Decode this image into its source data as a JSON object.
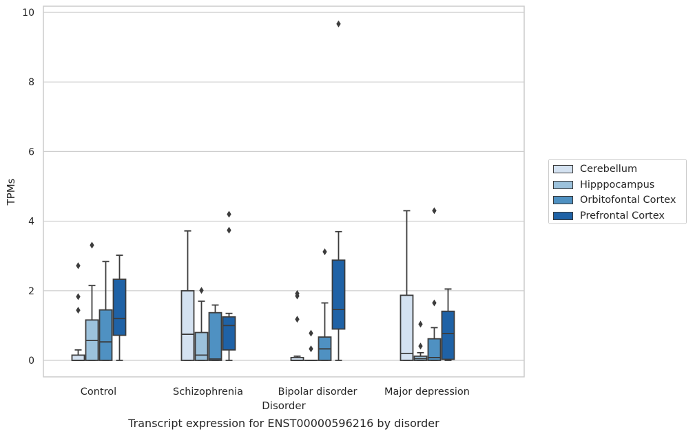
{
  "chart_data": {
    "type": "box",
    "xlabel": "Disorder",
    "ylabel": "TPMs",
    "caption": "Transcript expression for ENST00000596216 by disorder",
    "ylim": [
      -0.45,
      10.2
    ],
    "yticks": [
      0,
      2,
      4,
      6,
      8,
      10
    ],
    "categories": [
      "Control",
      "Schizophrenia",
      "Bipolar disorder",
      "Major depression"
    ],
    "grid": true,
    "legend_position": "right",
    "series": [
      {
        "name": "Cerebellum",
        "color": "#d4e2f1",
        "boxes": [
          {
            "whislo": 0,
            "q1": 0,
            "med": 0.0,
            "q3": 0.15,
            "whishi": 0.3,
            "fliers": [
              2.72,
              1.83,
              1.44
            ]
          },
          {
            "whislo": 0,
            "q1": 0,
            "med": 0.75,
            "q3": 2.0,
            "whishi": 3.72,
            "fliers": []
          },
          {
            "whislo": 0,
            "q1": 0,
            "med": 0.0,
            "q3": 0.08,
            "whishi": 0.12,
            "fliers": [
              1.92,
              1.85,
              1.18
            ]
          },
          {
            "whislo": 0,
            "q1": 0,
            "med": 0.2,
            "q3": 1.87,
            "whishi": 4.3,
            "fliers": []
          }
        ]
      },
      {
        "name": "Hipppocampus",
        "color": "#9cc2dc",
        "boxes": [
          {
            "whislo": 0,
            "q1": 0,
            "med": 0.57,
            "q3": 1.16,
            "whishi": 2.15,
            "fliers": [
              3.31
            ]
          },
          {
            "whislo": 0,
            "q1": 0,
            "med": 0.15,
            "q3": 0.8,
            "whishi": 1.7,
            "fliers": [
              2.01
            ]
          },
          {
            "whislo": 0,
            "q1": 0,
            "med": 0.0,
            "q3": 0.0,
            "whishi": 0.0,
            "fliers": [
              0.78,
              0.33
            ]
          },
          {
            "whislo": 0,
            "q1": 0,
            "med": 0.05,
            "q3": 0.12,
            "whishi": 0.22,
            "fliers": [
              1.04,
              0.41
            ]
          }
        ]
      },
      {
        "name": "Orbitofontal Cortex",
        "color": "#4f91c2",
        "boxes": [
          {
            "whislo": 0,
            "q1": 0,
            "med": 0.53,
            "q3": 1.45,
            "whishi": 2.84,
            "fliers": []
          },
          {
            "whislo": 0,
            "q1": 0,
            "med": 0.04,
            "q3": 1.37,
            "whishi": 1.59,
            "fliers": []
          },
          {
            "whislo": 0,
            "q1": 0,
            "med": 0.33,
            "q3": 0.67,
            "whishi": 1.65,
            "fliers": [
              3.12
            ]
          },
          {
            "whislo": 0,
            "q1": 0,
            "med": 0.08,
            "q3": 0.62,
            "whishi": 0.94,
            "fliers": [
              1.65,
              4.3
            ]
          }
        ]
      },
      {
        "name": "Prefrontal Cortex",
        "color": "#1f62a6",
        "boxes": [
          {
            "whislo": 0,
            "q1": 0.72,
            "med": 1.2,
            "q3": 2.33,
            "whishi": 3.02,
            "fliers": []
          },
          {
            "whislo": 0,
            "q1": 0.3,
            "med": 1.0,
            "q3": 1.25,
            "whishi": 1.35,
            "fliers": [
              4.2,
              3.74
            ]
          },
          {
            "whislo": 0,
            "q1": 0.9,
            "med": 1.46,
            "q3": 2.88,
            "whishi": 3.7,
            "fliers": [
              9.67
            ]
          },
          {
            "whislo": 0,
            "q1": 0.03,
            "med": 0.77,
            "q3": 1.41,
            "whishi": 2.05,
            "fliers": []
          }
        ]
      }
    ]
  }
}
